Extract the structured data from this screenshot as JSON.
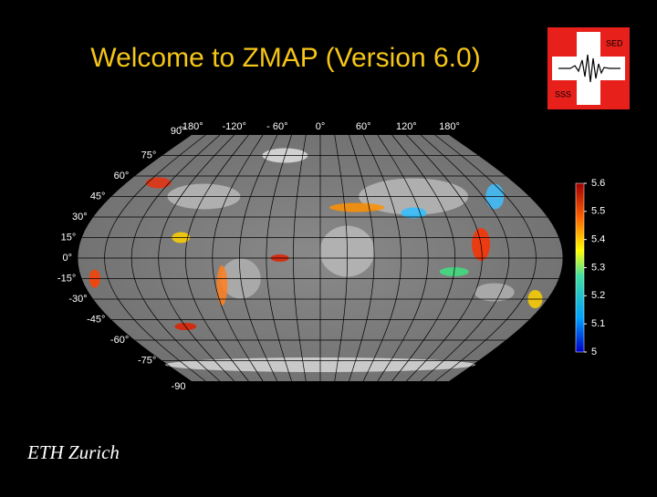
{
  "title": "Welcome to ZMAP (Version 6.0)",
  "logo": {
    "top_text": "SED",
    "bottom_text": "SSS"
  },
  "map": {
    "lon_labels": [
      {
        "value": -180,
        "label": "-180°"
      },
      {
        "value": -120,
        "label": "-120°"
      },
      {
        "value": -60,
        "label": "- 60°"
      },
      {
        "value": 0,
        "label": "0°"
      },
      {
        "value": 60,
        "label": "60°"
      },
      {
        "value": 120,
        "label": "120°"
      },
      {
        "value": 180,
        "label": "180°"
      }
    ],
    "lat_labels": [
      {
        "value": 90,
        "label": "90°"
      },
      {
        "value": 75,
        "label": "75°"
      },
      {
        "value": 60,
        "label": "60°"
      },
      {
        "value": 45,
        "label": "45°"
      },
      {
        "value": 30,
        "label": "30°"
      },
      {
        "value": 15,
        "label": "15°"
      },
      {
        "value": 0,
        "label": "0°"
      },
      {
        "value": -15,
        "label": "-15°"
      },
      {
        "value": -30,
        "label": "-30°"
      },
      {
        "value": -45,
        "label": "-45°"
      },
      {
        "value": -60,
        "label": "-60°"
      },
      {
        "value": -75,
        "label": "-75°"
      },
      {
        "value": -90,
        "label": "-90"
      }
    ]
  },
  "colorbar": {
    "range": [
      5,
      5.6
    ],
    "ticks": [
      5.6,
      5.5,
      5.4,
      5.3,
      5.2,
      5.1,
      5
    ]
  },
  "footer": "ETH Zurich"
}
